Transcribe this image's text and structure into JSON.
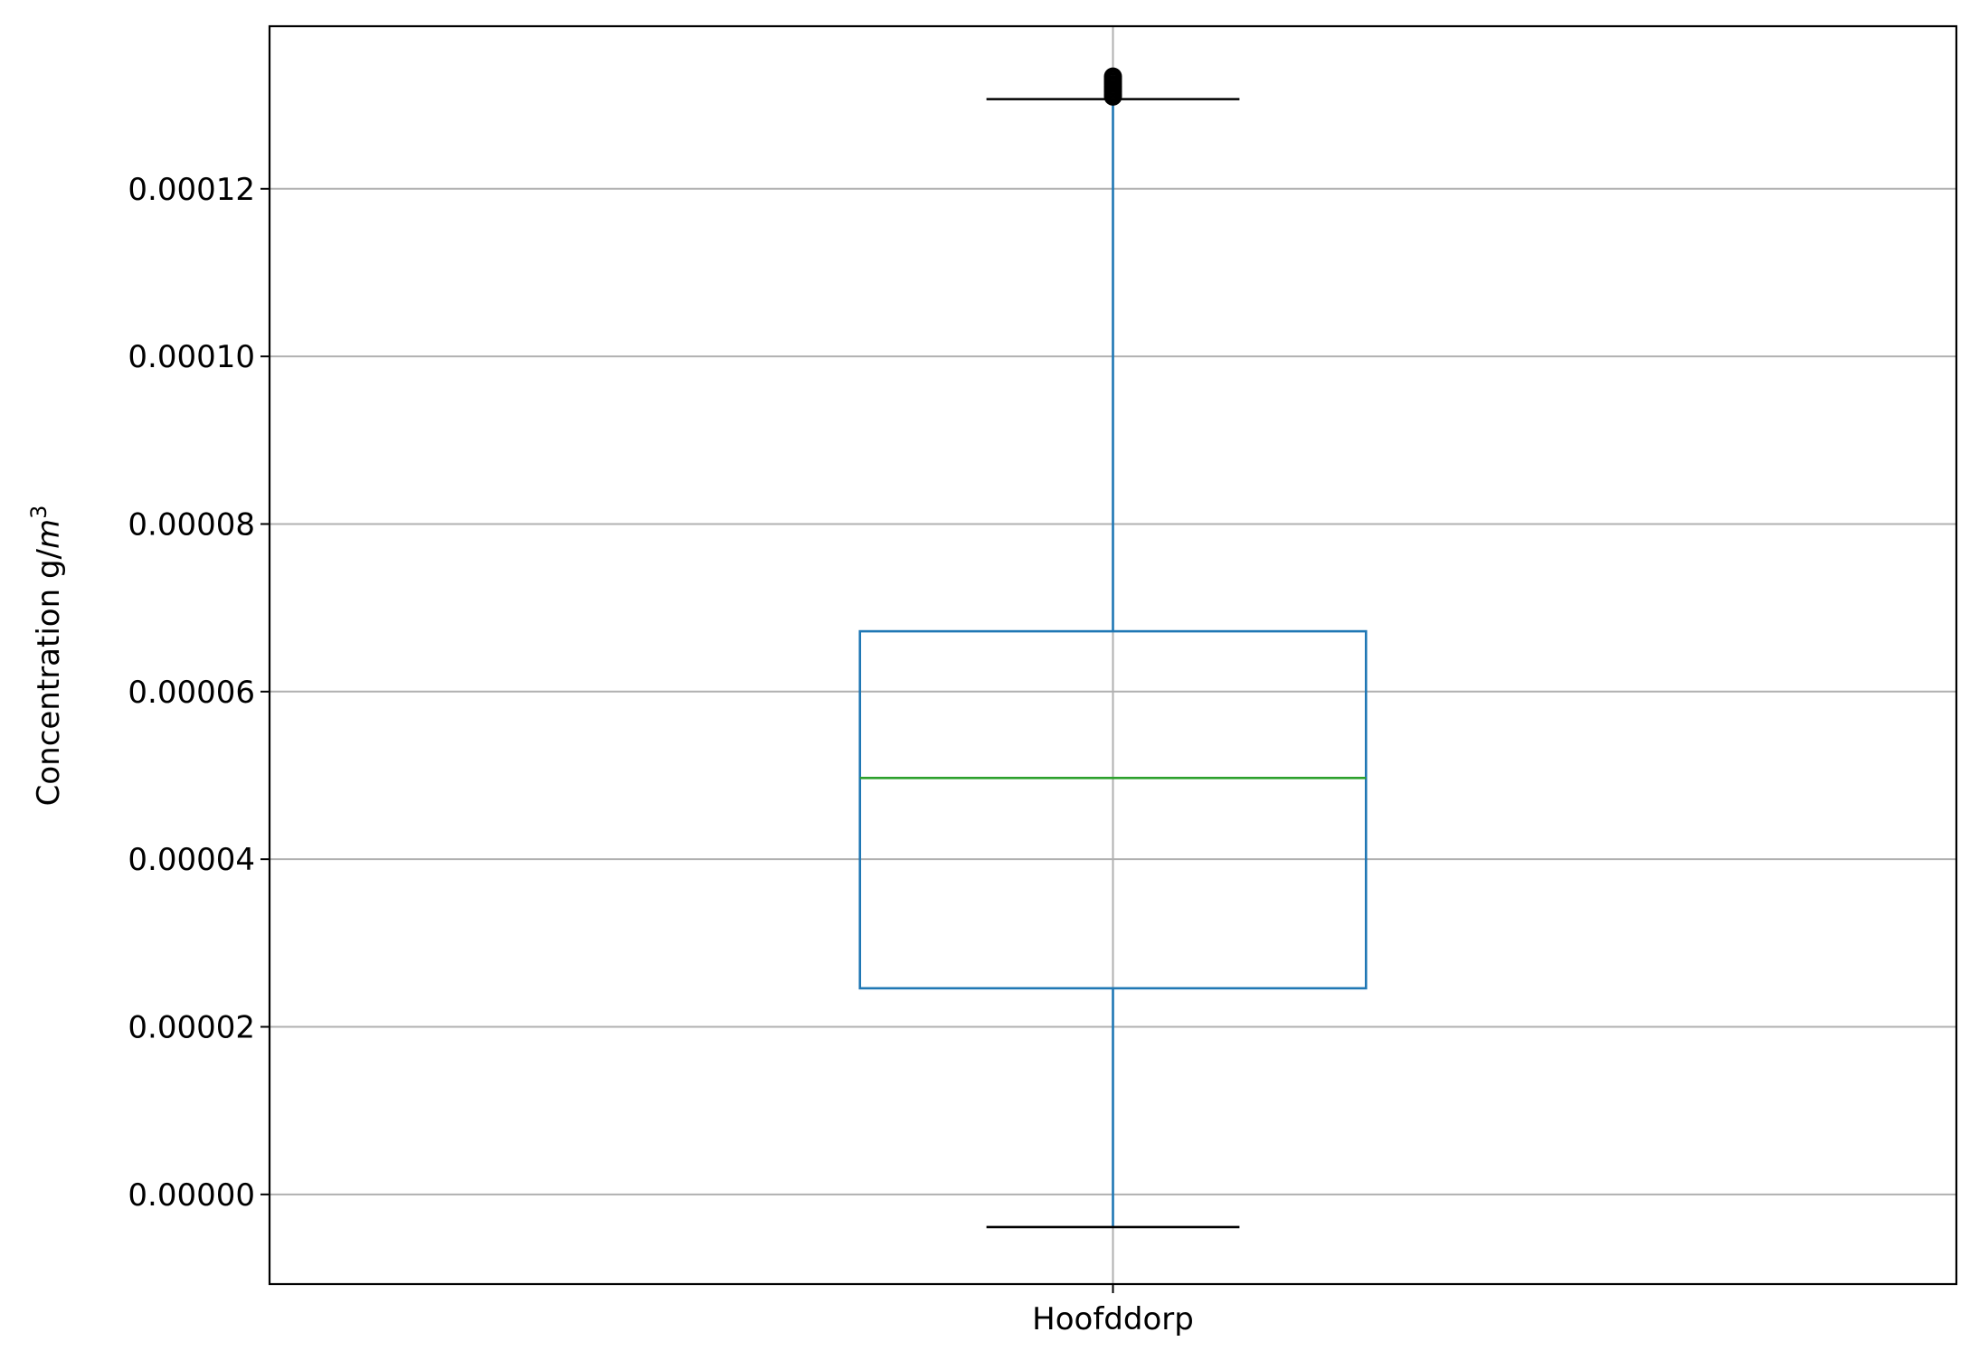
{
  "chart_data": {
    "type": "box",
    "categories": [
      "Hoofddorp"
    ],
    "series": [
      {
        "category": "Hoofddorp",
        "whisker_low": -3.9e-06,
        "q1": 2.46e-05,
        "median": 4.97e-05,
        "q3": 6.72e-05,
        "whisker_high": 0.0001307,
        "outliers": [
          0.000131,
          0.0001313,
          0.0001316,
          0.0001319,
          0.0001322,
          0.0001325,
          0.0001328,
          0.0001331,
          0.0001334
        ]
      }
    ],
    "ylabel_text": "Concentration g/",
    "ylabel_unit": "m",
    "ylabel_exponent": "3",
    "ylim": [
      -1.07e-05,
      0.0001394
    ],
    "yticks": [
      0,
      2e-05,
      4e-05,
      6e-05,
      8e-05,
      0.0001,
      0.00012
    ],
    "ytick_labels": [
      "0.00000",
      "0.00002",
      "0.00004",
      "0.00006",
      "0.00008",
      "0.00010",
      "0.00012"
    ],
    "grid": true,
    "colors": {
      "box": "#1f77b4",
      "median": "#2ca02c",
      "caps": "#000000",
      "outliers": "#000000",
      "grid": "#b0b0b0",
      "axes": "#000000"
    }
  }
}
